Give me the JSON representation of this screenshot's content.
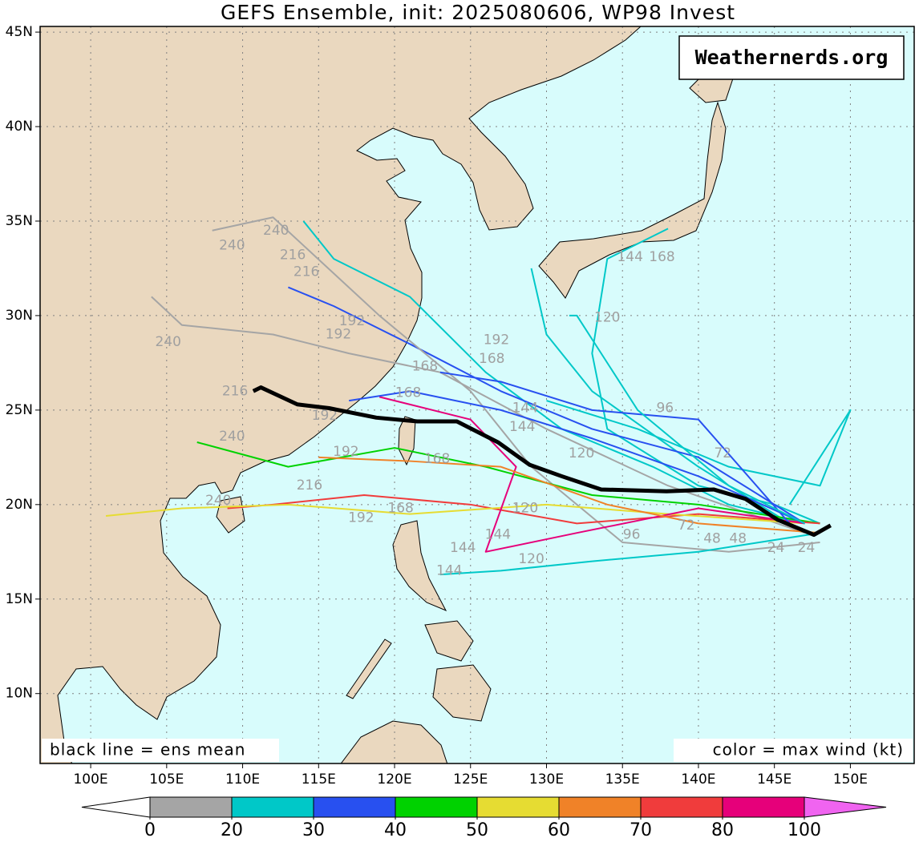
{
  "map": {
    "title": "GEFS Ensemble, init: 2025080606, WP98 Invest",
    "xlim": [
      96.67,
      154.2
    ],
    "ylim": [
      6.3,
      45.3
    ],
    "xticks": [
      {
        "value": 100,
        "label": "100E"
      },
      {
        "value": 105,
        "label": "105E"
      },
      {
        "value": 110,
        "label": "110E"
      },
      {
        "value": 115,
        "label": "115E"
      },
      {
        "value": 120,
        "label": "120E"
      },
      {
        "value": 125,
        "label": "125E"
      },
      {
        "value": 130,
        "label": "130E"
      },
      {
        "value": 135,
        "label": "135E"
      },
      {
        "value": 140,
        "label": "140E"
      },
      {
        "value": 145,
        "label": "145E"
      },
      {
        "value": 150,
        "label": "150E"
      }
    ],
    "yticks": [
      {
        "value": 10,
        "label": "10N"
      },
      {
        "value": 15,
        "label": "15N"
      },
      {
        "value": 20,
        "label": "20N"
      },
      {
        "value": 25,
        "label": "25N"
      },
      {
        "value": 30,
        "label": "30N"
      },
      {
        "value": 35,
        "label": "35N"
      },
      {
        "value": 40,
        "label": "40N"
      },
      {
        "value": 45,
        "label": "45N"
      }
    ],
    "grid": true,
    "ocean_color": "#d8fcfc",
    "watermark": "Weathernerds.org",
    "note_left": "black line = ens mean",
    "note_right": "color = max wind (kt)",
    "mean_track": {
      "color": "#000000",
      "lon": [
        148.7,
        147.6,
        145.2,
        143.1,
        141.0,
        137.9,
        133.6,
        131.0,
        128.9,
        126.8,
        124.1,
        121.5,
        118.8,
        115.7,
        113.6,
        112.0,
        111.2,
        110.7
      ],
      "lat": [
        18.9,
        18.4,
        19.2,
        20.3,
        20.8,
        20.7,
        20.8,
        21.5,
        22.1,
        23.3,
        24.4,
        24.4,
        24.6,
        25.1,
        25.3,
        25.9,
        26.2,
        26.0
      ]
    },
    "tracks": [
      {
        "color": "#00c8c8",
        "lon": [
          148,
          145,
          140,
          134,
          133,
          134,
          138
        ],
        "lat": [
          19,
          20,
          21,
          24,
          28,
          33,
          34.6
        ]
      },
      {
        "color": "#00c8c8",
        "lon": [
          146,
          140,
          133,
          130,
          129
        ],
        "lat": [
          19,
          22,
          26,
          29,
          32.5
        ]
      },
      {
        "color": "#00c8c8",
        "lon": [
          147,
          142,
          137,
          131,
          126,
          121,
          116,
          114
        ],
        "lat": [
          19,
          20,
          22,
          24,
          27,
          31,
          33,
          35
        ]
      },
      {
        "color": "#2850f0",
        "lon": [
          147,
          140,
          133,
          127,
          121,
          116,
          113
        ],
        "lat": [
          19,
          22.5,
          24,
          26,
          28.5,
          30.5,
          31.5
        ]
      },
      {
        "color": "#a5a5a5",
        "lon": [
          148,
          142,
          135,
          129,
          125,
          119,
          112,
          108
        ],
        "lat": [
          18,
          17.5,
          18,
          22,
          26,
          30,
          35.2,
          34.5
        ]
      },
      {
        "color": "#a5a5a5",
        "lon": [
          147,
          138,
          130,
          123,
          117,
          112,
          106,
          104
        ],
        "lat": [
          18.5,
          21,
          24,
          27,
          28,
          29,
          29.5,
          31
        ]
      },
      {
        "color": "#00d200",
        "lon": [
          148,
          140,
          133,
          126,
          120,
          113,
          107
        ],
        "lat": [
          19,
          20,
          20.5,
          22,
          23,
          22,
          23.3
        ]
      },
      {
        "color": "#f03c3c",
        "lon": [
          148,
          140,
          132,
          125,
          118,
          112,
          109
        ],
        "lat": [
          19,
          19.5,
          19,
          20,
          20.5,
          20,
          19.8
        ]
      },
      {
        "color": "#e6dc32",
        "lon": [
          147,
          138,
          130,
          121,
          113,
          106,
          101
        ],
        "lat": [
          19,
          19.5,
          20,
          19.5,
          20,
          19.8,
          19.4
        ]
      },
      {
        "color": "#e6007a",
        "lon": [
          147,
          140,
          132,
          126,
          128,
          125,
          119
        ],
        "lat": [
          19,
          19.8,
          18.5,
          17.5,
          22,
          24.5,
          25.7
        ]
      },
      {
        "color": "#f08228",
        "lon": [
          148,
          140,
          134,
          127,
          121,
          115
        ],
        "lat": [
          18.5,
          19,
          20,
          22,
          22.3,
          22.5
        ]
      },
      {
        "color": "#00c8c8",
        "lon": [
          148,
          140,
          133,
          127,
          123
        ],
        "lat": [
          18.5,
          17.5,
          17,
          16.5,
          16.3
        ]
      },
      {
        "color": "#2850f0",
        "lon": [
          147,
          140,
          133,
          127,
          121,
          117
        ],
        "lat": [
          19,
          21.5,
          23.5,
          25,
          26,
          25.5
        ]
      },
      {
        "color": "#00c8c8",
        "lon": [
          146,
          150,
          148,
          142,
          136,
          130
        ],
        "lat": [
          20,
          25,
          21,
          22,
          24,
          25.5
        ]
      },
      {
        "color": "#2850f0",
        "lon": [
          146,
          140,
          133,
          127,
          123
        ],
        "lat": [
          19,
          24.5,
          25,
          26.5,
          27
        ]
      },
      {
        "color": "#00c8c8",
        "lon": [
          147,
          142,
          136,
          132,
          131.5
        ],
        "lat": [
          19,
          21,
          25,
          30,
          30
        ]
      }
    ],
    "hour_labels": [
      {
        "text": "240",
        "lon": 109.3,
        "lat": 33.7
      },
      {
        "text": "240",
        "lon": 112.2,
        "lat": 34.5
      },
      {
        "text": "216",
        "lon": 113.3,
        "lat": 33.2
      },
      {
        "text": "216",
        "lon": 114.2,
        "lat": 32.3
      },
      {
        "text": "192",
        "lon": 117.2,
        "lat": 29.7
      },
      {
        "text": "192",
        "lon": 116.3,
        "lat": 29.0
      },
      {
        "text": "240",
        "lon": 105.1,
        "lat": 28.6
      },
      {
        "text": "168",
        "lon": 122.0,
        "lat": 27.3
      },
      {
        "text": "192",
        "lon": 126.7,
        "lat": 28.7
      },
      {
        "text": "168",
        "lon": 126.4,
        "lat": 27.7
      },
      {
        "text": "168",
        "lon": 120.9,
        "lat": 25.9
      },
      {
        "text": "216",
        "lon": 109.5,
        "lat": 26.0
      },
      {
        "text": "192",
        "lon": 115.4,
        "lat": 24.7
      },
      {
        "text": "144",
        "lon": 128.6,
        "lat": 25.1
      },
      {
        "text": "144",
        "lon": 128.4,
        "lat": 24.1
      },
      {
        "text": "96",
        "lon": 137.8,
        "lat": 25.1
      },
      {
        "text": "72",
        "lon": 141.6,
        "lat": 22.7
      },
      {
        "text": "240",
        "lon": 109.3,
        "lat": 23.6
      },
      {
        "text": "192",
        "lon": 116.8,
        "lat": 22.8
      },
      {
        "text": "168",
        "lon": 122.8,
        "lat": 22.4
      },
      {
        "text": "240",
        "lon": 108.4,
        "lat": 20.2
      },
      {
        "text": "216",
        "lon": 114.4,
        "lat": 21.0
      },
      {
        "text": "192",
        "lon": 117.8,
        "lat": 19.3
      },
      {
        "text": "168",
        "lon": 120.4,
        "lat": 19.8
      },
      {
        "text": "120",
        "lon": 128.6,
        "lat": 19.8
      },
      {
        "text": "144",
        "lon": 126.8,
        "lat": 18.4
      },
      {
        "text": "144",
        "lon": 124.5,
        "lat": 17.7
      },
      {
        "text": "144",
        "lon": 123.6,
        "lat": 16.5
      },
      {
        "text": "120",
        "lon": 129.0,
        "lat": 17.1
      },
      {
        "text": "96",
        "lon": 135.6,
        "lat": 18.4
      },
      {
        "text": "72",
        "lon": 139.2,
        "lat": 18.9
      },
      {
        "text": "48",
        "lon": 140.9,
        "lat": 18.2
      },
      {
        "text": "48",
        "lon": 142.6,
        "lat": 18.2
      },
      {
        "text": "24",
        "lon": 145.1,
        "lat": 17.7
      },
      {
        "text": "24",
        "lon": 147.1,
        "lat": 17.7
      },
      {
        "text": "120",
        "lon": 134.0,
        "lat": 29.9
      },
      {
        "text": "144",
        "lon": 135.5,
        "lat": 33.1
      },
      {
        "text": "168",
        "lon": 137.6,
        "lat": 33.1
      },
      {
        "text": "120",
        "lon": 132.3,
        "lat": 22.7
      }
    ],
    "hour_label_color": "#a0a0a0",
    "colorbar": {
      "levels": [
        0,
        20,
        30,
        40,
        50,
        60,
        70,
        80,
        100
      ],
      "colors": [
        "#a5a5a5",
        "#00c8c8",
        "#2850f0",
        "#00d200",
        "#e6dc32",
        "#f08228",
        "#f03c3c",
        "#e6007a"
      ],
      "under_color": "#ffffff",
      "over_color": "#f064f0"
    }
  }
}
